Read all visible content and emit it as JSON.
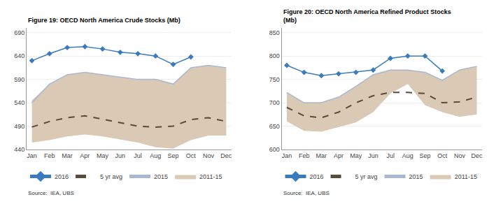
{
  "chart_data": [
    {
      "type": "line",
      "title": "Figure 19: OECD North America Crude Stocks (Mb)",
      "categories": [
        "Jan",
        "Feb",
        "Mar",
        "Apr",
        "May",
        "Jun",
        "Jul",
        "Aug",
        "Sep",
        "Oct",
        "Nov",
        "Dec"
      ],
      "series": [
        {
          "name": "2011-15",
          "type": "area",
          "color": "#d9c9b5",
          "values": [
            [
              455,
              545
            ],
            [
              460,
              580
            ],
            [
              468,
              600
            ],
            [
              472,
              605
            ],
            [
              468,
              600
            ],
            [
              462,
              595
            ],
            [
              455,
              590
            ],
            [
              445,
              590
            ],
            [
              442,
              580
            ],
            [
              460,
              615
            ],
            [
              470,
              620
            ],
            [
              470,
              615
            ]
          ]
        },
        {
          "name": "2015",
          "type": "line",
          "color": "#a8b8d0",
          "values": [
            540,
            580,
            600,
            605,
            600,
            595,
            590,
            590,
            580,
            615,
            620,
            615
          ]
        },
        {
          "name": "5 yr avg",
          "type": "line",
          "line_style": "dashed",
          "color": "#5a4a3a",
          "values": [
            488,
            500,
            508,
            512,
            505,
            498,
            490,
            488,
            490,
            504,
            508,
            500
          ]
        },
        {
          "name": "2016",
          "type": "line",
          "marker": "diamond",
          "color": "#3a7bbf",
          "values": [
            630,
            645,
            658,
            660,
            655,
            648,
            645,
            640,
            622,
            638,
            null,
            null
          ]
        }
      ],
      "ylim": [
        440,
        700
      ],
      "yticks": [
        440,
        490,
        540,
        590,
        640,
        690
      ],
      "grid": true,
      "legend": "bottom",
      "annotations": [
        "Source:  IEA, UBS"
      ]
    },
    {
      "type": "line",
      "title": "Figure 20: OECD North America Refined Product Stocks\n(Mb)",
      "categories": [
        "Jan",
        "Feb",
        "Mar",
        "Apr",
        "May",
        "Jun",
        "Jul",
        "Aug",
        "Sep",
        "Oct",
        "Nov",
        "Dec"
      ],
      "series": [
        {
          "name": "2011-15",
          "type": "area",
          "color": "#d9c9b5",
          "values": [
            [
              660,
              722
            ],
            [
              640,
              700
            ],
            [
              638,
              700
            ],
            [
              648,
              712
            ],
            [
              658,
              735
            ],
            [
              680,
              760
            ],
            [
              720,
              770
            ],
            [
              740,
              770
            ],
            [
              695,
              765
            ],
            [
              680,
              748
            ],
            [
              670,
              770
            ],
            [
              675,
              778
            ]
          ]
        },
        {
          "name": "2015",
          "type": "line",
          "color": "#a8b8d0",
          "values": [
            722,
            700,
            700,
            712,
            735,
            760,
            770,
            770,
            765,
            748,
            770,
            778
          ]
        },
        {
          "name": "5 yr avg",
          "type": "line",
          "line_style": "dashed",
          "color": "#5a4a3a",
          "values": [
            690,
            672,
            668,
            680,
            700,
            715,
            722,
            722,
            720,
            700,
            702,
            712
          ]
        },
        {
          "name": "2016",
          "type": "line",
          "marker": "diamond",
          "color": "#3a7bbf",
          "values": [
            780,
            765,
            758,
            762,
            765,
            770,
            795,
            800,
            800,
            768,
            null,
            null
          ]
        }
      ],
      "ylim": [
        600,
        860
      ],
      "yticks": [
        600,
        650,
        700,
        750,
        800,
        850
      ],
      "grid": true,
      "legend": "bottom",
      "annotations": [
        "Source:  IEA, UBS"
      ]
    }
  ]
}
